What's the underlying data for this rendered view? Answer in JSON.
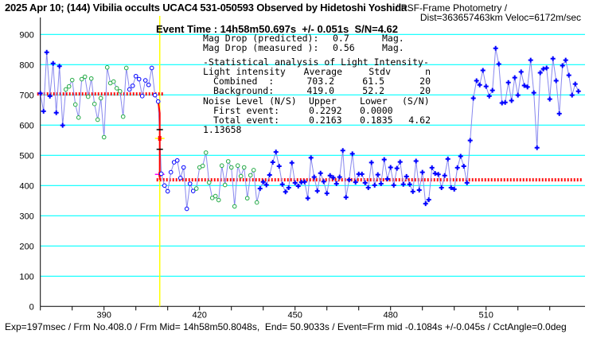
{
  "header": {
    "title": "2025 Apr 10; (144) Vibilia occults UCAC4 531-050593 Observed by Hidetoshi Yoshida",
    "subtitle_line1": "/ PSF-Frame Photometry /",
    "subtitle_line2": "Dist=363657463km Veloc=6172m/sec",
    "event_time": "Event Time : 14h58m50.697s  +/- 0.051s  S/N=4.62"
  },
  "stats": {
    "mag_pred": {
      "label": "Mag Drop (predicted):",
      "value": "0.7",
      "unit": "Mag."
    },
    "mag_meas": {
      "label": "Mag Drop (measured ):",
      "value": "0.56",
      "unit": "Mag."
    },
    "section_title": "-Statistical analysis of Light Intensity-",
    "head": {
      "label": "Light intensity",
      "avg": "Average",
      "std": "Stdv",
      "n": "n"
    },
    "combined": {
      "label": "Combined  :",
      "avg": "703.2",
      "std": "61.5",
      "n": "20"
    },
    "background": {
      "label": "Background:",
      "avg": "419.0",
      "std": "52.2",
      "n": "20"
    },
    "noise_head": {
      "label": "Noise Level (N/S)",
      "upper": "Upper",
      "lower": "Lower",
      "sn": "(S/N)"
    },
    "first_event": {
      "label": "First event:",
      "upper": "0.2292",
      "lower": "0.0000"
    },
    "total_event": {
      "label": "Total event:",
      "upper": "0.2163",
      "lower": "0.1835",
      "sn": "4.62"
    },
    "extra_value": "1.13658"
  },
  "footer": "Exp=197msec / Frm No.408.0 / Frm Mid= 14h58m50.8048s,  End= 50.9033s / Event=Frm mid -0.1084s +/-0.045s / CctAngle=0.0deg",
  "chart_data": {
    "type": "line",
    "xlim": [
      370,
      540
    ],
    "ylim": [
      0,
      900
    ],
    "x_ticks": [
      370,
      380,
      390,
      400,
      410,
      420,
      430,
      440,
      450,
      460,
      470,
      480,
      490,
      500,
      510,
      520,
      530
    ],
    "x_tick_labels": [
      "390",
      "420",
      "450",
      "480",
      "510"
    ],
    "x_tick_label_values": [
      390,
      420,
      450,
      480,
      510
    ],
    "y_tick_labels": [
      "0",
      "100",
      "200",
      "300",
      "400",
      "500",
      "600",
      "700",
      "800",
      "900"
    ],
    "y_tick_values": [
      0,
      100,
      200,
      300,
      400,
      500,
      600,
      700,
      800,
      900
    ],
    "grid": true,
    "x_start": 370,
    "values": [
      705,
      646,
      841,
      696,
      804,
      641,
      795,
      599,
      718,
      728,
      749,
      668,
      625,
      752,
      760,
      694,
      754,
      670,
      618,
      689,
      560,
      791,
      739,
      744,
      722,
      712,
      628,
      789,
      718,
      730,
      762,
      752,
      696,
      748,
      733,
      789,
      699,
      678,
      439,
      400,
      381,
      444,
      477,
      483,
      425,
      460,
      323,
      406,
      382,
      390,
      460,
      465,
      509,
      410,
      359,
      365,
      352,
      466,
      402,
      480,
      460,
      331,
      466,
      431,
      460,
      358,
      434,
      451,
      344,
      390,
      412,
      402,
      435,
      477,
      511,
      464,
      404,
      379,
      393,
      475,
      409,
      398,
      411,
      412,
      358,
      492,
      428,
      382,
      441,
      413,
      374,
      433,
      426,
      406,
      428,
      516,
      361,
      419,
      505,
      411,
      438,
      438,
      409,
      393,
      476,
      401,
      436,
      406,
      486,
      422,
      460,
      401,
      457,
      478,
      404,
      430,
      404,
      380,
      481,
      385,
      444,
      340,
      353,
      459,
      440,
      437,
      393,
      433,
      488,
      393,
      388,
      459,
      497,
      464,
      409,
      549,
      689,
      747,
      733,
      781,
      728,
      696,
      715,
      854,
      802,
      673,
      675,
      741,
      681,
      757,
      699,
      776,
      731,
      726,
      815,
      707,
      525,
      773,
      786,
      789,
      686,
      820,
      747,
      638,
      797,
      815,
      765,
      699,
      736,
      712
    ],
    "point_groups": [
      {
        "from": 370,
        "to": 377,
        "style": "filled"
      },
      {
        "from": 378,
        "to": 397,
        "style": "combined-sample"
      },
      {
        "from": 398,
        "to": 418,
        "style": "hollow"
      },
      {
        "from": 419,
        "to": 438,
        "style": "background-sample"
      },
      {
        "from": 439,
        "to": 539,
        "style": "filled"
      }
    ],
    "combined_level": {
      "value": 703.2,
      "from": 370,
      "to": 407.5
    },
    "background_level": {
      "value": 419.0,
      "from": 407.5,
      "to": 540
    },
    "event_frame": 407.5,
    "event_markers": {
      "upper_tick": 585,
      "lower_tick": 520,
      "mid": 556,
      "bottom": 437
    },
    "colors": {
      "grid": "#00ffff",
      "line": "#8888ee",
      "point": "#0000ff",
      "sample": "#22aa44",
      "level": "#ff0000",
      "event": "#ffff00",
      "bottom_marker": "#ff00ff"
    }
  }
}
